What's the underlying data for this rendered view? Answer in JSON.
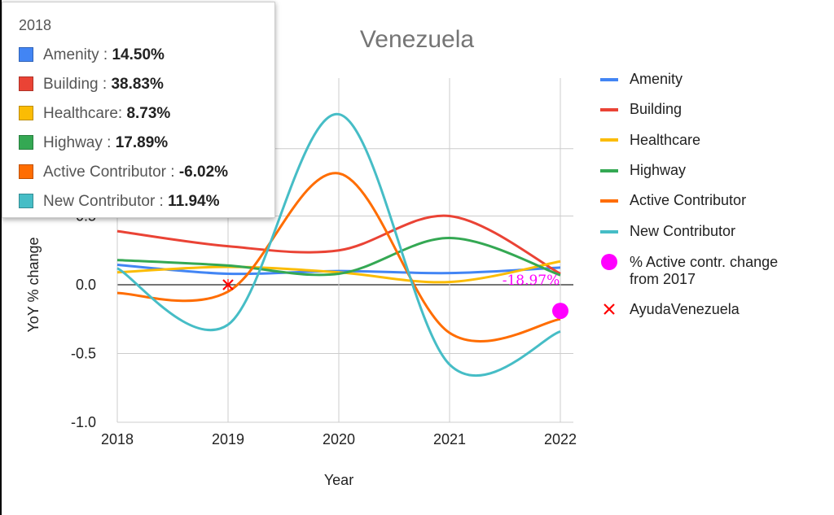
{
  "chart_data": {
    "type": "line",
    "title": "Venezuela",
    "xlabel": "Year",
    "ylabel": "YoY % change",
    "categories": [
      "2018",
      "2019",
      "2020",
      "2021",
      "2022"
    ],
    "y_ticks": [
      "-1.0",
      "-0.5",
      "0.0",
      "0.5"
    ],
    "ylim": [
      -1.0,
      1.2
    ],
    "grid": true,
    "legend_position": "right",
    "series": [
      {
        "name": "Amenity",
        "color": "#4285f4",
        "values": [
          0.145,
          0.08,
          0.1,
          0.085,
          0.125
        ]
      },
      {
        "name": "Building",
        "color": "#ea4335",
        "values": [
          0.39,
          0.28,
          0.25,
          0.5,
          0.08
        ]
      },
      {
        "name": "Healthcare",
        "color": "#fbbc04",
        "values": [
          0.09,
          0.13,
          0.09,
          0.02,
          0.17
        ]
      },
      {
        "name": "Highway",
        "color": "#34a853",
        "values": [
          0.18,
          0.14,
          0.08,
          0.34,
          0.07
        ]
      },
      {
        "name": "Active Contributor",
        "color": "#ff6d01",
        "values": [
          -0.06,
          -0.05,
          0.81,
          -0.35,
          -0.25
        ]
      },
      {
        "name": "New Contributor",
        "color": "#46bdc6",
        "values": [
          0.12,
          -0.29,
          1.24,
          -0.58,
          -0.34
        ]
      }
    ],
    "markers": [
      {
        "name": "% Active contr. change from 2017",
        "color": "#ff00ff",
        "x": "2022",
        "y": -0.19,
        "label": "-18.97%"
      },
      {
        "name": "AyudaVenezuela",
        "color": "#ff0000",
        "x": "2019",
        "y": 0.0
      }
    ]
  },
  "tooltip": {
    "title": "2018",
    "rows": [
      {
        "label": "Amenity",
        "sep": " : ",
        "value": "14.50%",
        "color": "#4285f4"
      },
      {
        "label": "Building",
        "sep": " : ",
        "value": "38.83%",
        "color": "#ea4335"
      },
      {
        "label": "Healthcare",
        "sep": ": ",
        "value": "8.73%",
        "color": "#fbbc04"
      },
      {
        "label": "Highway",
        "sep": " : ",
        "value": "17.89%",
        "color": "#34a853"
      },
      {
        "label": "Active Contributor",
        "sep": " : ",
        "value": "-6.02%",
        "color": "#ff6d01"
      },
      {
        "label": "New Contributor",
        "sep": " : ",
        "value": "11.94%",
        "color": "#46bdc6"
      }
    ]
  },
  "legend": {
    "marker_label_line1": "% Active contr. change",
    "marker_label_line2": "from 2017"
  }
}
